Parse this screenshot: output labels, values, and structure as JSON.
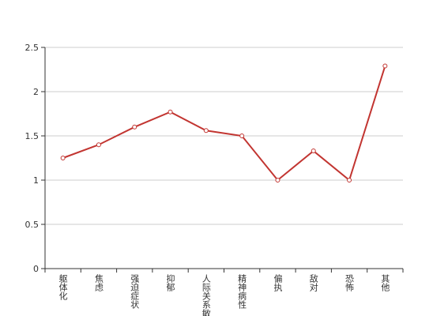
{
  "chart_data": {
    "type": "line",
    "categories": [
      "躯体化",
      "焦虑",
      "强迫症状",
      "抑郁",
      "人际关系敏感",
      "精神病性",
      "偏执",
      "敌对",
      "恐怖",
      "其他"
    ],
    "values": [
      1.25,
      1.4,
      1.6,
      1.77,
      1.56,
      1.5,
      1.0,
      1.33,
      1.0,
      2.29
    ],
    "color": "#c23531",
    "ylim": [
      0,
      2.5
    ],
    "yticks": [
      0,
      0.5,
      1,
      1.5,
      2,
      2.5
    ],
    "grid": true
  }
}
